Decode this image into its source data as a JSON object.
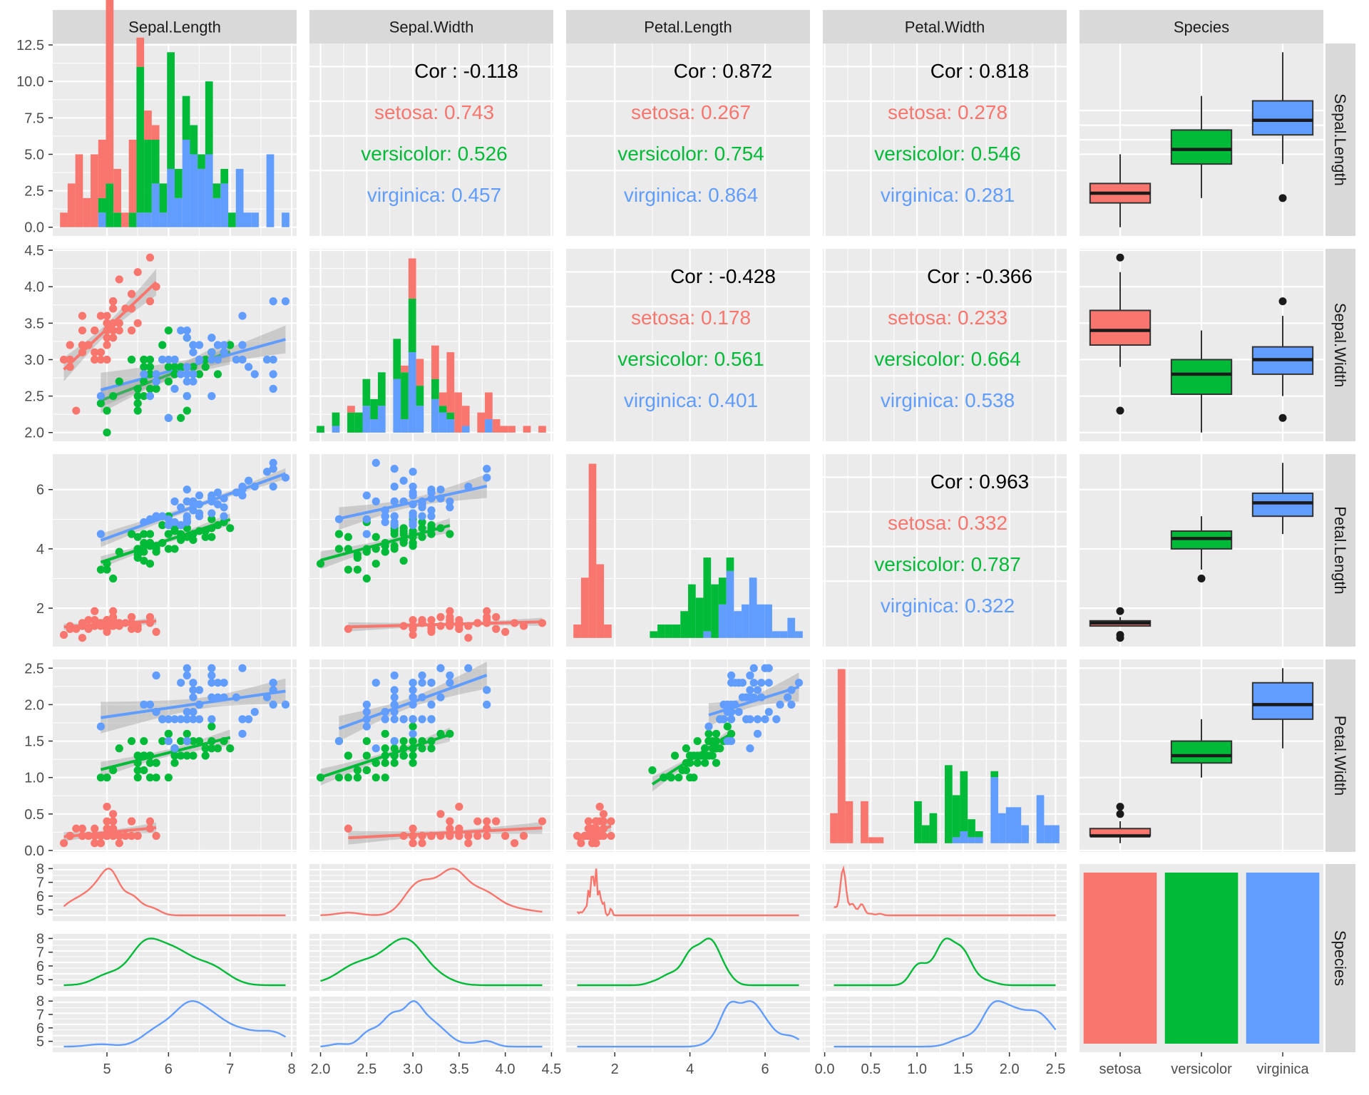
{
  "colors": {
    "setosa": "#F8766D",
    "versicolor": "#00BA38",
    "virginica": "#619CFF",
    "panel": "#EBEBEB",
    "strip": "#D9D9D9",
    "grid": "#FFFFFF"
  },
  "variables": [
    "Sepal.Length",
    "Sepal.Width",
    "Petal.Length",
    "Petal.Width",
    "Species"
  ],
  "species": [
    "setosa",
    "versicolor",
    "virginica"
  ],
  "chart_data": {
    "type": "pairs",
    "variables": [
      "Sepal.Length",
      "Sepal.Width",
      "Petal.Length",
      "Petal.Width",
      "Species"
    ],
    "species": [
      "setosa",
      "versicolor",
      "virginica"
    ],
    "ranges": {
      "Sepal.Length": [
        4.12,
        8.08
      ],
      "Sepal.Width": [
        1.88,
        4.52
      ],
      "Petal.Length": [
        0.705,
        7.195
      ],
      "Petal.Width": [
        -0.02,
        2.62
      ]
    },
    "ticks": {
      "Sepal.Length": [
        5,
        6,
        7,
        8
      ],
      "Sepal.Width": [
        2.0,
        2.5,
        3.0,
        3.5,
        4.0,
        4.5
      ],
      "Petal.Length": [
        2,
        4,
        6
      ],
      "Petal.Width": [
        0.0,
        0.5,
        1.0,
        1.5,
        2.0,
        2.5
      ]
    },
    "tick_labels": {
      "Sepal.Length": [
        "5",
        "6",
        "7",
        "8"
      ],
      "Sepal.Width": [
        "2.0",
        "2.5",
        "3.0",
        "3.5",
        "4.0",
        "4.5"
      ],
      "Petal.Length": [
        "2",
        "4",
        "6"
      ],
      "Petal.Width": [
        "0.0",
        "0.5",
        "1.0",
        "1.5",
        "2.0",
        "2.5"
      ]
    },
    "row_y_axes": [
      {
        "range": [
          -0.6,
          12.6
        ],
        "ticks": [
          0.0,
          2.5,
          5.0,
          7.5,
          10.0,
          12.5
        ],
        "labels": [
          "0.0",
          "2.5",
          "5.0",
          "7.5",
          "10.0",
          "12.5"
        ]
      },
      {
        "range": [
          1.88,
          4.52
        ],
        "ticks": [
          2.0,
          2.5,
          3.0,
          3.5,
          4.0,
          4.5
        ],
        "labels": [
          "2.0",
          "2.5",
          "3.0",
          "3.5",
          "4.0",
          "4.5"
        ]
      },
      {
        "range": [
          0.705,
          7.195
        ],
        "ticks": [
          2,
          4,
          6
        ],
        "labels": [
          "2",
          "4",
          "6"
        ]
      },
      {
        "range": [
          -0.02,
          2.62
        ],
        "ticks": [
          0.0,
          0.5,
          1.0,
          1.5,
          2.0,
          2.5
        ],
        "labels": [
          "0.0",
          "0.5",
          "1.0",
          "1.5",
          "2.0",
          "2.5"
        ]
      }
    ],
    "density_y_ticks": [
      5,
      6,
      7,
      8
    ],
    "density_y_labels": [
      "5",
      "6",
      "7",
      "8"
    ],
    "species_axis_labels": [
      "setosa",
      "versicolor",
      "virginica"
    ],
    "correlations": [
      {
        "row": "Sepal.Length",
        "col": "Sepal.Width",
        "overall": "Cor : -0.118",
        "groups": [
          "setosa: 0.743",
          "versicolor: 0.526",
          "virginica: 0.457"
        ]
      },
      {
        "row": "Sepal.Length",
        "col": "Petal.Length",
        "overall": "Cor : 0.872",
        "groups": [
          "setosa: 0.267",
          "versicolor: 0.754",
          "virginica: 0.864"
        ]
      },
      {
        "row": "Sepal.Length",
        "col": "Petal.Width",
        "overall": "Cor : 0.818",
        "groups": [
          "setosa: 0.278",
          "versicolor: 0.546",
          "virginica: 0.281"
        ]
      },
      {
        "row": "Sepal.Width",
        "col": "Petal.Length",
        "overall": "Cor : -0.428",
        "groups": [
          "setosa: 0.178",
          "versicolor: 0.561",
          "virginica: 0.401"
        ]
      },
      {
        "row": "Sepal.Width",
        "col": "Petal.Width",
        "overall": "Cor : -0.366",
        "groups": [
          "setosa: 0.233",
          "versicolor: 0.664",
          "virginica: 0.538"
        ]
      },
      {
        "row": "Petal.Length",
        "col": "Petal.Width",
        "overall": "Cor : 0.963",
        "groups": [
          "setosa: 0.332",
          "versicolor: 0.787",
          "virginica: 0.322"
        ]
      }
    ],
    "boxplots": {
      "Sepal.Length": [
        {
          "min": 4.3,
          "q1": 4.8,
          "median": 5.0,
          "q3": 5.2,
          "max": 5.8,
          "outliers": []
        },
        {
          "min": 4.9,
          "q1": 5.6,
          "median": 5.9,
          "q3": 6.3,
          "max": 7.0,
          "outliers": []
        },
        {
          "min": 5.6,
          "q1": 6.2,
          "median": 6.5,
          "q3": 6.9,
          "max": 7.9,
          "outliers": [
            4.9
          ]
        }
      ],
      "Sepal.Width": [
        {
          "min": 2.9,
          "q1": 3.2,
          "median": 3.4,
          "q3": 3.675,
          "max": 4.2,
          "outliers": [
            4.4,
            2.3
          ]
        },
        {
          "min": 2.0,
          "q1": 2.525,
          "median": 2.8,
          "q3": 3.0,
          "max": 3.4,
          "outliers": []
        },
        {
          "min": 2.5,
          "q1": 2.8,
          "median": 3.0,
          "q3": 3.175,
          "max": 3.6,
          "outliers": [
            3.8,
            2.2
          ]
        }
      ],
      "Petal.Length": [
        {
          "min": 1.4,
          "q1": 1.4,
          "median": 1.5,
          "q3": 1.575,
          "max": 1.7,
          "outliers": [
            1.9,
            1.1,
            1.0
          ]
        },
        {
          "min": 3.3,
          "q1": 4.0,
          "median": 4.35,
          "q3": 4.6,
          "max": 5.1,
          "outliers": [
            3.0
          ]
        },
        {
          "min": 4.5,
          "q1": 5.1,
          "median": 5.55,
          "q3": 5.875,
          "max": 6.9,
          "outliers": []
        }
      ],
      "Petal.Width": [
        {
          "min": 0.1,
          "q1": 0.2,
          "median": 0.2,
          "q3": 0.3,
          "max": 0.4,
          "outliers": [
            0.5,
            0.6
          ]
        },
        {
          "min": 1.0,
          "q1": 1.2,
          "median": 1.3,
          "q3": 1.5,
          "max": 1.8,
          "outliers": []
        },
        {
          "min": 1.4,
          "q1": 1.8,
          "median": 2.0,
          "q3": 2.3,
          "max": 2.5,
          "outliers": []
        }
      ]
    },
    "species_counts": [
      50,
      50,
      50
    ],
    "iris": {
      "setosa": [
        [
          5.1,
          3.5,
          1.4,
          0.2
        ],
        [
          4.9,
          3.0,
          1.4,
          0.2
        ],
        [
          4.7,
          3.2,
          1.3,
          0.2
        ],
        [
          4.6,
          3.1,
          1.5,
          0.2
        ],
        [
          5.0,
          3.6,
          1.4,
          0.2
        ],
        [
          5.4,
          3.9,
          1.7,
          0.4
        ],
        [
          4.6,
          3.4,
          1.4,
          0.3
        ],
        [
          5.0,
          3.4,
          1.5,
          0.2
        ],
        [
          4.4,
          2.9,
          1.4,
          0.2
        ],
        [
          4.9,
          3.1,
          1.5,
          0.1
        ],
        [
          5.4,
          3.7,
          1.5,
          0.2
        ],
        [
          4.8,
          3.4,
          1.6,
          0.2
        ],
        [
          4.8,
          3.0,
          1.4,
          0.1
        ],
        [
          4.3,
          3.0,
          1.1,
          0.1
        ],
        [
          5.8,
          4.0,
          1.2,
          0.2
        ],
        [
          5.7,
          4.4,
          1.5,
          0.4
        ],
        [
          5.4,
          3.9,
          1.3,
          0.4
        ],
        [
          5.1,
          3.5,
          1.4,
          0.3
        ],
        [
          5.7,
          3.8,
          1.7,
          0.3
        ],
        [
          5.1,
          3.8,
          1.5,
          0.3
        ],
        [
          5.4,
          3.4,
          1.7,
          0.2
        ],
        [
          5.1,
          3.7,
          1.5,
          0.4
        ],
        [
          4.6,
          3.6,
          1.0,
          0.2
        ],
        [
          5.1,
          3.3,
          1.7,
          0.5
        ],
        [
          4.8,
          3.4,
          1.9,
          0.2
        ],
        [
          5.0,
          3.0,
          1.6,
          0.2
        ],
        [
          5.0,
          3.4,
          1.6,
          0.4
        ],
        [
          5.2,
          3.5,
          1.5,
          0.2
        ],
        [
          5.2,
          3.4,
          1.4,
          0.2
        ],
        [
          4.7,
          3.2,
          1.6,
          0.2
        ],
        [
          4.8,
          3.1,
          1.6,
          0.2
        ],
        [
          5.4,
          3.4,
          1.5,
          0.4
        ],
        [
          5.2,
          4.1,
          1.5,
          0.1
        ],
        [
          5.5,
          4.2,
          1.4,
          0.2
        ],
        [
          4.9,
          3.1,
          1.5,
          0.2
        ],
        [
          5.0,
          3.2,
          1.2,
          0.2
        ],
        [
          5.5,
          3.5,
          1.3,
          0.2
        ],
        [
          4.9,
          3.6,
          1.4,
          0.1
        ],
        [
          4.4,
          3.0,
          1.3,
          0.2
        ],
        [
          5.1,
          3.4,
          1.5,
          0.2
        ],
        [
          5.0,
          3.5,
          1.3,
          0.3
        ],
        [
          4.5,
          2.3,
          1.3,
          0.3
        ],
        [
          4.4,
          3.2,
          1.3,
          0.2
        ],
        [
          5.0,
          3.5,
          1.6,
          0.6
        ],
        [
          5.1,
          3.8,
          1.9,
          0.4
        ],
        [
          4.8,
          3.0,
          1.4,
          0.3
        ],
        [
          5.1,
          3.8,
          1.6,
          0.2
        ],
        [
          4.6,
          3.2,
          1.4,
          0.2
        ],
        [
          5.3,
          3.7,
          1.5,
          0.2
        ],
        [
          5.0,
          3.3,
          1.4,
          0.2
        ]
      ],
      "versicolor": [
        [
          7.0,
          3.2,
          4.7,
          1.4
        ],
        [
          6.4,
          3.2,
          4.5,
          1.5
        ],
        [
          6.9,
          3.1,
          4.9,
          1.5
        ],
        [
          5.5,
          2.3,
          4.0,
          1.3
        ],
        [
          6.5,
          2.8,
          4.6,
          1.5
        ],
        [
          5.7,
          2.8,
          4.5,
          1.3
        ],
        [
          6.3,
          3.3,
          4.7,
          1.6
        ],
        [
          4.9,
          2.4,
          3.3,
          1.0
        ],
        [
          6.6,
          2.9,
          4.6,
          1.3
        ],
        [
          5.2,
          2.7,
          3.9,
          1.4
        ],
        [
          5.0,
          2.0,
          3.5,
          1.0
        ],
        [
          5.9,
          3.0,
          4.2,
          1.5
        ],
        [
          6.0,
          2.2,
          4.0,
          1.0
        ],
        [
          6.1,
          2.9,
          4.7,
          1.4
        ],
        [
          5.6,
          2.9,
          3.6,
          1.3
        ],
        [
          6.7,
          3.1,
          4.4,
          1.4
        ],
        [
          5.6,
          3.0,
          4.5,
          1.5
        ],
        [
          5.8,
          2.7,
          4.1,
          1.0
        ],
        [
          6.2,
          2.2,
          4.5,
          1.5
        ],
        [
          5.6,
          2.5,
          3.9,
          1.1
        ],
        [
          5.9,
          3.2,
          4.8,
          1.8
        ],
        [
          6.1,
          2.8,
          4.0,
          1.3
        ],
        [
          6.3,
          2.5,
          4.9,
          1.5
        ],
        [
          6.1,
          2.8,
          4.7,
          1.2
        ],
        [
          6.4,
          2.9,
          4.3,
          1.3
        ],
        [
          6.6,
          3.0,
          4.4,
          1.4
        ],
        [
          6.8,
          2.8,
          4.8,
          1.4
        ],
        [
          6.7,
          3.0,
          5.0,
          1.7
        ],
        [
          6.0,
          2.9,
          4.5,
          1.5
        ],
        [
          5.7,
          2.6,
          3.5,
          1.0
        ],
        [
          5.5,
          2.4,
          3.8,
          1.1
        ],
        [
          5.5,
          2.4,
          3.7,
          1.0
        ],
        [
          5.8,
          2.7,
          3.9,
          1.2
        ],
        [
          6.0,
          2.7,
          5.1,
          1.6
        ],
        [
          5.4,
          3.0,
          4.5,
          1.5
        ],
        [
          6.0,
          3.4,
          4.5,
          1.6
        ],
        [
          6.7,
          3.1,
          4.7,
          1.5
        ],
        [
          6.3,
          2.3,
          4.4,
          1.3
        ],
        [
          5.6,
          3.0,
          4.1,
          1.3
        ],
        [
          5.5,
          2.5,
          4.0,
          1.3
        ],
        [
          5.5,
          2.6,
          4.4,
          1.2
        ],
        [
          6.1,
          3.0,
          4.6,
          1.4
        ],
        [
          5.8,
          2.6,
          4.0,
          1.2
        ],
        [
          5.0,
          2.3,
          3.3,
          1.0
        ],
        [
          5.6,
          2.7,
          4.2,
          1.3
        ],
        [
          5.7,
          3.0,
          4.2,
          1.2
        ],
        [
          5.7,
          2.9,
          4.2,
          1.3
        ],
        [
          6.2,
          2.9,
          4.3,
          1.3
        ],
        [
          5.1,
          2.5,
          3.0,
          1.1
        ],
        [
          5.7,
          2.8,
          4.1,
          1.3
        ]
      ],
      "virginica": [
        [
          6.3,
          3.3,
          6.0,
          2.5
        ],
        [
          5.8,
          2.7,
          5.1,
          1.9
        ],
        [
          7.1,
          3.0,
          5.9,
          2.1
        ],
        [
          6.3,
          2.9,
          5.6,
          1.8
        ],
        [
          6.5,
          3.0,
          5.8,
          2.2
        ],
        [
          7.6,
          3.0,
          6.6,
          2.1
        ],
        [
          4.9,
          2.5,
          4.5,
          1.7
        ],
        [
          7.3,
          2.9,
          6.3,
          1.8
        ],
        [
          6.7,
          2.5,
          5.8,
          1.8
        ],
        [
          7.2,
          3.6,
          6.1,
          2.5
        ],
        [
          6.5,
          3.2,
          5.1,
          2.0
        ],
        [
          6.4,
          2.7,
          5.3,
          1.9
        ],
        [
          6.8,
          3.0,
          5.5,
          2.1
        ],
        [
          5.7,
          2.5,
          5.0,
          2.0
        ],
        [
          5.8,
          2.8,
          5.1,
          2.4
        ],
        [
          6.4,
          3.2,
          5.3,
          2.3
        ],
        [
          6.5,
          3.0,
          5.5,
          1.8
        ],
        [
          7.7,
          3.8,
          6.7,
          2.2
        ],
        [
          7.7,
          2.6,
          6.9,
          2.3
        ],
        [
          6.0,
          2.2,
          5.0,
          1.5
        ],
        [
          6.9,
          3.2,
          5.7,
          2.3
        ],
        [
          5.6,
          2.8,
          4.9,
          2.0
        ],
        [
          7.7,
          2.8,
          6.7,
          2.0
        ],
        [
          6.3,
          2.7,
          4.9,
          1.8
        ],
        [
          6.7,
          3.3,
          5.7,
          2.1
        ],
        [
          7.2,
          3.2,
          6.0,
          1.8
        ],
        [
          6.2,
          2.8,
          4.8,
          1.8
        ],
        [
          6.1,
          3.0,
          4.9,
          1.8
        ],
        [
          6.4,
          2.8,
          5.6,
          2.1
        ],
        [
          7.2,
          3.0,
          5.8,
          1.6
        ],
        [
          7.4,
          2.8,
          6.1,
          1.9
        ],
        [
          7.9,
          3.8,
          6.4,
          2.0
        ],
        [
          6.4,
          2.8,
          5.6,
          2.2
        ],
        [
          6.3,
          2.8,
          5.1,
          1.5
        ],
        [
          6.1,
          2.6,
          5.6,
          1.4
        ],
        [
          7.7,
          3.0,
          6.1,
          2.3
        ],
        [
          6.3,
          3.4,
          5.6,
          2.4
        ],
        [
          6.4,
          3.1,
          5.5,
          1.8
        ],
        [
          6.0,
          3.0,
          4.8,
          1.8
        ],
        [
          6.9,
          3.1,
          5.4,
          2.1
        ],
        [
          6.7,
          3.1,
          5.6,
          2.4
        ],
        [
          6.9,
          3.1,
          5.1,
          2.3
        ],
        [
          5.8,
          2.7,
          5.1,
          1.9
        ],
        [
          6.8,
          3.2,
          5.9,
          2.3
        ],
        [
          6.7,
          3.3,
          5.7,
          2.5
        ],
        [
          6.7,
          3.0,
          5.2,
          2.3
        ],
        [
          6.3,
          2.5,
          5.0,
          1.9
        ],
        [
          6.5,
          3.0,
          5.2,
          2.0
        ],
        [
          6.2,
          3.4,
          5.4,
          2.3
        ],
        [
          5.9,
          3.0,
          5.1,
          1.8
        ]
      ]
    }
  }
}
